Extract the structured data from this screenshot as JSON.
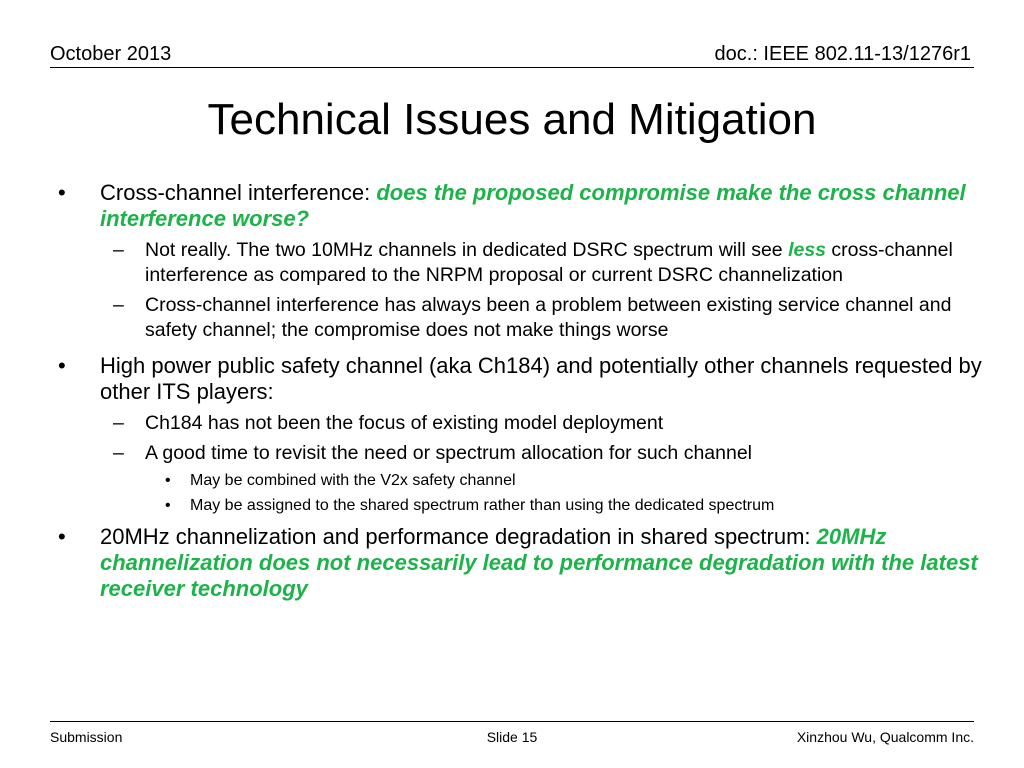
{
  "header": {
    "date": "October 2013",
    "doc": "doc.: IEEE 802.11-13/1276r1"
  },
  "title": "Technical Issues and Mitigation",
  "bullets": {
    "b1": {
      "text": "Cross-channel interference: ",
      "emph": "does the proposed compromise make the cross channel interference worse?",
      "sub1": {
        "before": "Not really. The two 10MHz channels in dedicated DSRC spectrum will see ",
        "emph": "less",
        "after": " cross-channel interference as compared to the NRPM proposal or current DSRC channelization"
      },
      "sub2": "Cross-channel interference has always been a problem between existing service channel and safety channel; the compromise does not make things worse"
    },
    "b2": {
      "text": "High power public safety channel (aka Ch184) and potentially other channels requested by other ITS players:",
      "sub1": "Ch184 has not been the focus of existing model deployment",
      "sub2": "A good time to revisit the need or spectrum allocation for such channel",
      "subsub1": "May be combined with the V2x safety channel",
      "subsub2": "May be assigned to the shared spectrum rather than using the dedicated spectrum"
    },
    "b3": {
      "text": "20MHz channelization and performance degradation in shared spectrum: ",
      "emph": "20MHz channelization does not necessarily lead to performance degradation with the latest receiver technology"
    }
  },
  "footer": {
    "left": "Submission",
    "center": "Slide 15",
    "right": "Xinzhou Wu, Qualcomm Inc."
  },
  "colors": {
    "emphasis": "#1db34a"
  }
}
